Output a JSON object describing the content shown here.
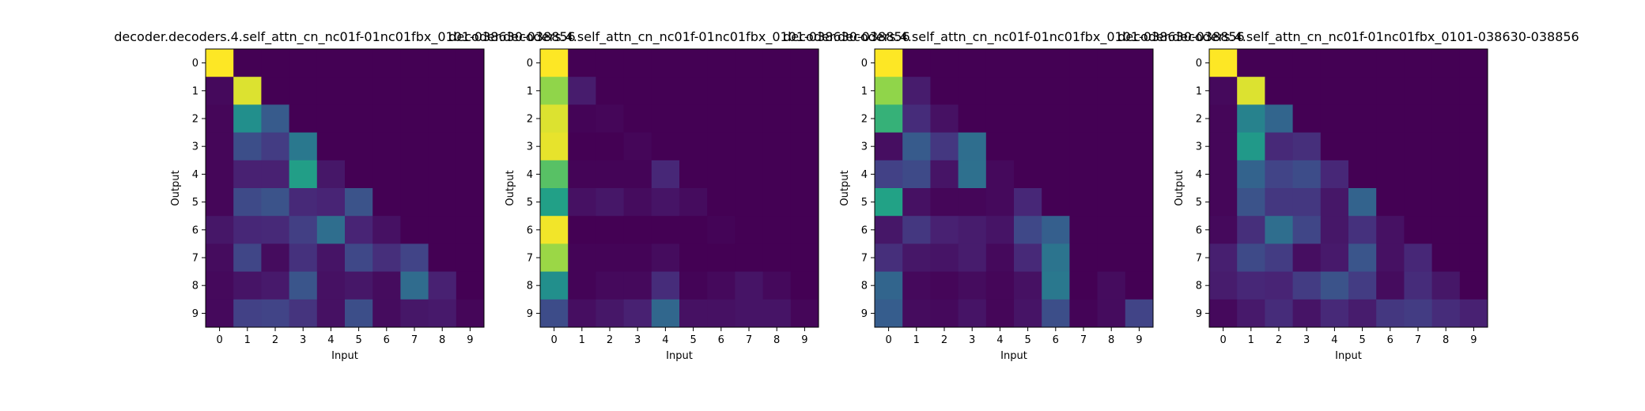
{
  "figure": {
    "common_title": "decoder.decoders.4.self_attn_cn_nc01f-01nc01fbx_0101-038630-038856",
    "colormap": "viridis"
  },
  "chart_data": [
    {
      "type": "heatmap",
      "title": "decoder.decoders.4.self_attn_cn_nc01f-01nc01fbx_0101-038630-038856",
      "xlabel": "Input",
      "ylabel": "Output",
      "x_ticks": [
        "0",
        "1",
        "2",
        "3",
        "4",
        "5",
        "6",
        "7",
        "8",
        "9"
      ],
      "y_ticks": [
        "0",
        "1",
        "2",
        "3",
        "4",
        "5",
        "6",
        "7",
        "8",
        "9"
      ],
      "values": [
        [
          1.0,
          0.0,
          0.0,
          0.0,
          0.0,
          0.0,
          0.0,
          0.0,
          0.0,
          0.0
        ],
        [
          0.03,
          0.97,
          0.0,
          0.0,
          0.0,
          0.0,
          0.0,
          0.0,
          0.0,
          0.0
        ],
        [
          0.02,
          0.62,
          0.36,
          0.0,
          0.0,
          0.0,
          0.0,
          0.0,
          0.0,
          0.0
        ],
        [
          0.02,
          0.3,
          0.22,
          0.5,
          0.0,
          0.0,
          0.0,
          0.0,
          0.0,
          0.0
        ],
        [
          0.02,
          0.12,
          0.12,
          0.7,
          0.08,
          0.0,
          0.0,
          0.0,
          0.0,
          0.0
        ],
        [
          0.02,
          0.28,
          0.32,
          0.15,
          0.13,
          0.32,
          0.0,
          0.0,
          0.0,
          0.0
        ],
        [
          0.08,
          0.14,
          0.15,
          0.23,
          0.45,
          0.13,
          0.06,
          0.0,
          0.0,
          0.0
        ],
        [
          0.04,
          0.26,
          0.04,
          0.18,
          0.07,
          0.27,
          0.17,
          0.25,
          0.0,
          0.0
        ],
        [
          0.03,
          0.07,
          0.09,
          0.33,
          0.06,
          0.08,
          0.04,
          0.44,
          0.12,
          0.0
        ],
        [
          0.03,
          0.24,
          0.25,
          0.19,
          0.06,
          0.3,
          0.04,
          0.08,
          0.09,
          0.02
        ]
      ]
    },
    {
      "type": "heatmap",
      "title": "decoder.decoders.4.self_attn_cn_nc01f-01nc01fbx_0101-038630-038856",
      "xlabel": "Input",
      "ylabel": "Output",
      "x_ticks": [
        "0",
        "1",
        "2",
        "3",
        "4",
        "5",
        "6",
        "7",
        "8",
        "9"
      ],
      "y_ticks": [
        "0",
        "1",
        "2",
        "3",
        "4",
        "5",
        "6",
        "7",
        "8",
        "9"
      ],
      "values": [
        [
          1.0,
          0.0,
          0.0,
          0.0,
          0.0,
          0.0,
          0.0,
          0.0,
          0.0,
          0.0
        ],
        [
          0.9,
          0.1,
          0.0,
          0.0,
          0.0,
          0.0,
          0.0,
          0.0,
          0.0,
          0.0
        ],
        [
          0.97,
          0.01,
          0.02,
          0.0,
          0.0,
          0.0,
          0.0,
          0.0,
          0.0,
          0.0
        ],
        [
          0.98,
          0.0,
          0.0,
          0.02,
          0.0,
          0.0,
          0.0,
          0.0,
          0.0,
          0.0
        ],
        [
          0.83,
          0.01,
          0.01,
          0.01,
          0.14,
          0.0,
          0.0,
          0.0,
          0.0,
          0.0
        ],
        [
          0.71,
          0.06,
          0.08,
          0.04,
          0.07,
          0.04,
          0.0,
          0.0,
          0.0,
          0.0
        ],
        [
          0.99,
          0.0,
          0.0,
          0.0,
          0.0,
          0.0,
          0.01,
          0.0,
          0.0,
          0.0
        ],
        [
          0.91,
          0.01,
          0.01,
          0.01,
          0.04,
          0.0,
          0.0,
          0.0,
          0.0,
          0.0
        ],
        [
          0.62,
          0.01,
          0.03,
          0.03,
          0.16,
          0.01,
          0.03,
          0.07,
          0.03,
          0.0
        ],
        [
          0.29,
          0.05,
          0.08,
          0.12,
          0.42,
          0.06,
          0.06,
          0.07,
          0.07,
          0.02
        ]
      ]
    },
    {
      "type": "heatmap",
      "title": "decoder.decoders.4.self_attn_cn_nc01f-01nc01fbx_0101-038630-038856",
      "xlabel": "Input",
      "ylabel": "Output",
      "x_ticks": [
        "0",
        "1",
        "2",
        "3",
        "4",
        "5",
        "6",
        "7",
        "8",
        "9"
      ],
      "y_ticks": [
        "0",
        "1",
        "2",
        "3",
        "4",
        "5",
        "6",
        "7",
        "8",
        "9"
      ],
      "values": [
        [
          1.0,
          0.0,
          0.0,
          0.0,
          0.0,
          0.0,
          0.0,
          0.0,
          0.0,
          0.0
        ],
        [
          0.9,
          0.1,
          0.0,
          0.0,
          0.0,
          0.0,
          0.0,
          0.0,
          0.0,
          0.0
        ],
        [
          0.78,
          0.16,
          0.06,
          0.0,
          0.0,
          0.0,
          0.0,
          0.0,
          0.0,
          0.0
        ],
        [
          0.05,
          0.36,
          0.2,
          0.45,
          0.0,
          0.0,
          0.0,
          0.0,
          0.0,
          0.0
        ],
        [
          0.24,
          0.28,
          0.07,
          0.46,
          0.03,
          0.0,
          0.0,
          0.0,
          0.0,
          0.0
        ],
        [
          0.72,
          0.06,
          0.02,
          0.02,
          0.03,
          0.14,
          0.0,
          0.0,
          0.0,
          0.0
        ],
        [
          0.08,
          0.2,
          0.12,
          0.1,
          0.07,
          0.27,
          0.38,
          0.0,
          0.0,
          0.0
        ],
        [
          0.17,
          0.08,
          0.07,
          0.1,
          0.03,
          0.15,
          0.48,
          0.0,
          0.0,
          0.0
        ],
        [
          0.41,
          0.03,
          0.02,
          0.04,
          0.02,
          0.06,
          0.5,
          0.0,
          0.04,
          0.0
        ],
        [
          0.37,
          0.04,
          0.03,
          0.07,
          0.02,
          0.07,
          0.3,
          0.01,
          0.04,
          0.25
        ]
      ]
    },
    {
      "type": "heatmap",
      "title": "decoder.decoders.4.self_attn_cn_nc01f-01nc01fbx_0101-038630-038856",
      "xlabel": "Input",
      "ylabel": "Output",
      "x_ticks": [
        "0",
        "1",
        "2",
        "3",
        "4",
        "5",
        "6",
        "7",
        "8",
        "9"
      ],
      "y_ticks": [
        "0",
        "1",
        "2",
        "3",
        "4",
        "5",
        "6",
        "7",
        "8",
        "9"
      ],
      "values": [
        [
          1.0,
          0.0,
          0.0,
          0.0,
          0.0,
          0.0,
          0.0,
          0.0,
          0.0,
          0.0
        ],
        [
          0.03,
          0.97,
          0.0,
          0.0,
          0.0,
          0.0,
          0.0,
          0.0,
          0.0,
          0.0
        ],
        [
          0.02,
          0.55,
          0.41,
          0.0,
          0.0,
          0.0,
          0.0,
          0.0,
          0.0,
          0.0
        ],
        [
          0.02,
          0.67,
          0.15,
          0.17,
          0.0,
          0.0,
          0.0,
          0.0,
          0.0,
          0.0
        ],
        [
          0.02,
          0.4,
          0.25,
          0.29,
          0.14,
          0.0,
          0.0,
          0.0,
          0.0,
          0.0
        ],
        [
          0.02,
          0.32,
          0.2,
          0.2,
          0.08,
          0.4,
          0.0,
          0.0,
          0.0,
          0.0
        ],
        [
          0.03,
          0.17,
          0.45,
          0.26,
          0.08,
          0.18,
          0.06,
          0.0,
          0.0,
          0.0
        ],
        [
          0.11,
          0.28,
          0.22,
          0.05,
          0.09,
          0.33,
          0.06,
          0.14,
          0.0,
          0.0
        ],
        [
          0.1,
          0.14,
          0.13,
          0.22,
          0.32,
          0.22,
          0.04,
          0.16,
          0.08,
          0.0
        ],
        [
          0.03,
          0.09,
          0.16,
          0.07,
          0.15,
          0.1,
          0.2,
          0.22,
          0.16,
          0.12
        ]
      ]
    }
  ]
}
